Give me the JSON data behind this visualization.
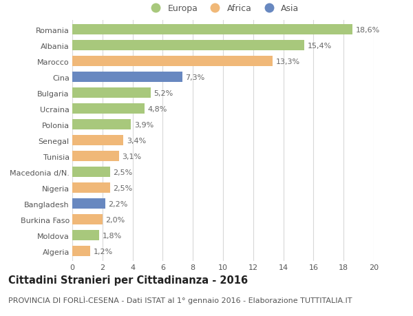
{
  "categories": [
    "Romania",
    "Albania",
    "Marocco",
    "Cina",
    "Bulgaria",
    "Ucraina",
    "Polonia",
    "Senegal",
    "Tunisia",
    "Macedonia d/N.",
    "Nigeria",
    "Bangladesh",
    "Burkina Faso",
    "Moldova",
    "Algeria"
  ],
  "values": [
    18.6,
    15.4,
    13.3,
    7.3,
    5.2,
    4.8,
    3.9,
    3.4,
    3.1,
    2.5,
    2.5,
    2.2,
    2.0,
    1.8,
    1.2
  ],
  "labels": [
    "18,6%",
    "15,4%",
    "13,3%",
    "7,3%",
    "5,2%",
    "4,8%",
    "3,9%",
    "3,4%",
    "3,1%",
    "2,5%",
    "2,5%",
    "2,2%",
    "2,0%",
    "1,8%",
    "1,2%"
  ],
  "continents": [
    "Europa",
    "Europa",
    "Africa",
    "Asia",
    "Europa",
    "Europa",
    "Europa",
    "Africa",
    "Africa",
    "Europa",
    "Africa",
    "Asia",
    "Africa",
    "Europa",
    "Africa"
  ],
  "colors": {
    "Europa": "#a8c87c",
    "Africa": "#f0b878",
    "Asia": "#6888c0"
  },
  "xlim": [
    0,
    20
  ],
  "xticks": [
    0,
    2,
    4,
    6,
    8,
    10,
    12,
    14,
    16,
    18,
    20
  ],
  "title": "Cittadini Stranieri per Cittadinanza - 2016",
  "subtitle": "PROVINCIA DI FORLÌ-CESENA - Dati ISTAT al 1° gennaio 2016 - Elaborazione TUTTITALIA.IT",
  "bg_color": "#ffffff",
  "grid_color": "#d8d8d8",
  "bar_height": 0.65,
  "title_fontsize": 10.5,
  "subtitle_fontsize": 8,
  "label_fontsize": 8,
  "tick_fontsize": 8,
  "legend_fontsize": 9
}
